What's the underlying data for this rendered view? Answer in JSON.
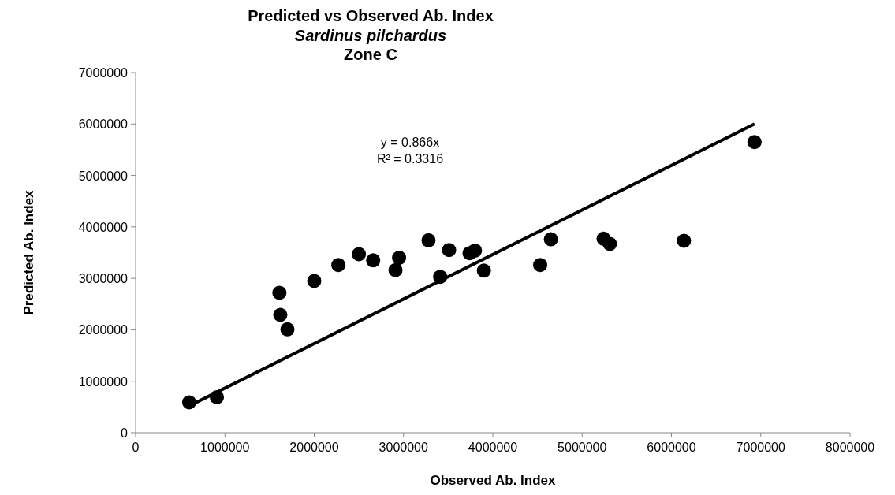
{
  "chart_data": {
    "type": "scatter",
    "title": "Predicted vs Observed Ab. Index",
    "subtitle": "Sardinus pilchardus\nZone C",
    "xlabel": "Observed Ab. Index",
    "ylabel": "Predicted Ab. Index",
    "xlim": [
      0,
      8000000
    ],
    "xticks": [
      0,
      1000000,
      2000000,
      3000000,
      4000000,
      5000000,
      6000000,
      7000000,
      8000000
    ],
    "ylim": [
      0,
      7000000
    ],
    "yticks": [
      0,
      1000000,
      2000000,
      3000000,
      4000000,
      5000000,
      6000000,
      7000000
    ],
    "grid": false,
    "annotations": [
      "y = 0.866x\nR² = 0.3316"
    ],
    "series": [
      {
        "color": "#000000",
        "marker": "circle",
        "x": [
          600000,
          910000,
          1610000,
          1620000,
          1700000,
          2000000,
          2270000,
          2500000,
          2660000,
          2910000,
          2950000,
          3280000,
          3410000,
          3510000,
          3740000,
          3800000,
          3900000,
          4530000,
          4650000,
          5240000,
          5310000,
          6140000,
          6930000
        ],
        "values": [
          590000,
          690000,
          2720000,
          2290000,
          2010000,
          2950000,
          3260000,
          3470000,
          3350000,
          3160000,
          3400000,
          3740000,
          3030000,
          3550000,
          3490000,
          3540000,
          3150000,
          3260000,
          3760000,
          3770000,
          3670000,
          3730000,
          5650000
        ]
      },
      {
        "type": "line",
        "color": "#000000",
        "x": [
          600000,
          6930000
        ],
        "values": [
          520000,
          6000000
        ]
      }
    ]
  }
}
